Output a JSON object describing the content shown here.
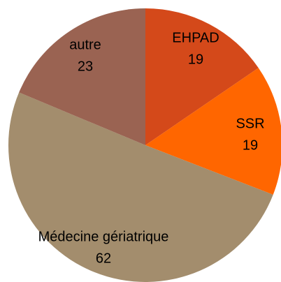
{
  "chart_data": {
    "type": "pie",
    "categories": [
      "EHPAD",
      "SSR",
      "Médecine gériatrique",
      "autre"
    ],
    "values": [
      19,
      19,
      62,
      23
    ],
    "colors": [
      "#d4491a",
      "#ff6600",
      "#a38d6d",
      "#9a6352"
    ]
  }
}
